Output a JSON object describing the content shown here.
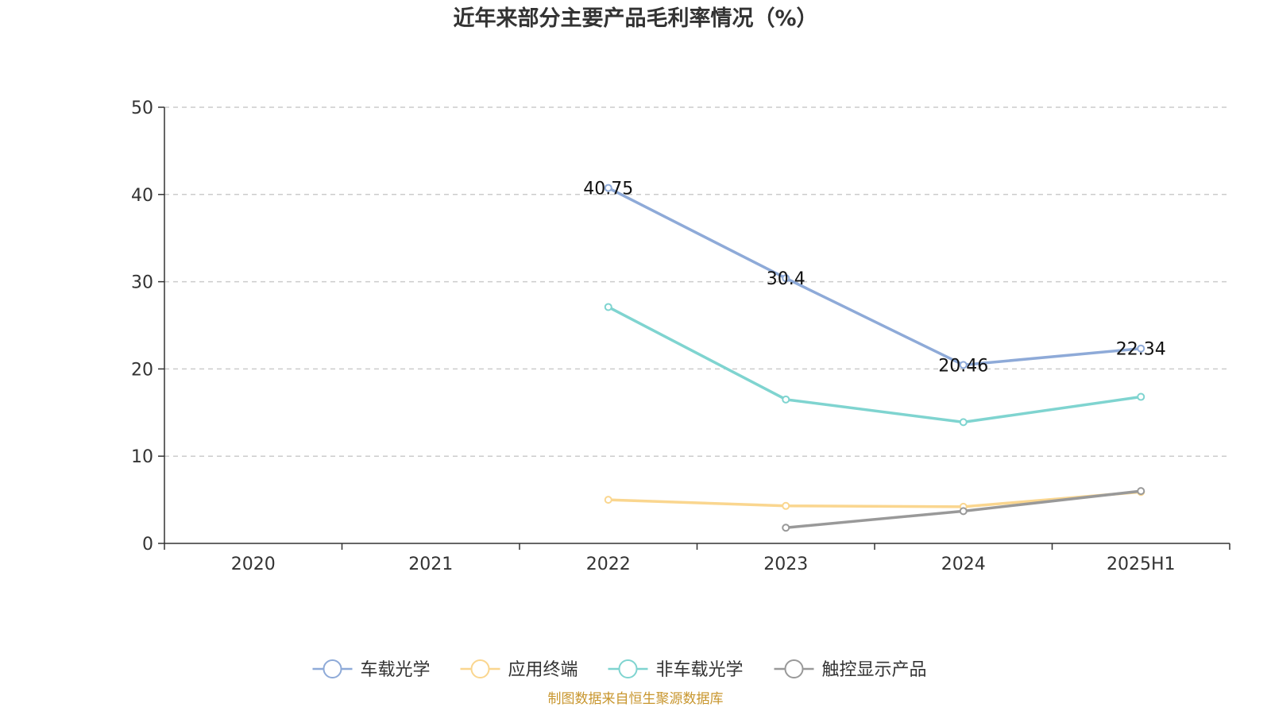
{
  "chart_data": {
    "type": "line",
    "title": "近年来部分主要产品毛利率情况（%）",
    "xlabel": "",
    "ylabel": "",
    "categories": [
      "2020",
      "2021",
      "2022",
      "2023",
      "2024",
      "2025H1"
    ],
    "ylim": [
      0,
      50
    ],
    "yticks": [
      0,
      10,
      20,
      30,
      40,
      50
    ],
    "grid": true,
    "legend_position": "bottom",
    "series": [
      {
        "name": "车载光学",
        "color": "#8eaad8",
        "values": [
          null,
          null,
          40.75,
          30.4,
          20.46,
          22.34
        ],
        "labels": [
          "",
          "",
          "40.75",
          "30.4",
          "20.46",
          "22.34"
        ]
      },
      {
        "name": "应用终端",
        "color": "#fad68f",
        "values": [
          null,
          null,
          5.0,
          4.3,
          4.2,
          5.9
        ],
        "labels": []
      },
      {
        "name": "非车载光学",
        "color": "#7fd4d0",
        "values": [
          null,
          null,
          27.1,
          16.5,
          13.9,
          16.8
        ],
        "labels": []
      },
      {
        "name": "触控显示产品",
        "color": "#999999",
        "values": [
          null,
          null,
          null,
          1.8,
          3.7,
          6.0
        ],
        "labels": []
      }
    ]
  },
  "source_note": "制图数据来自恒生聚源数据库"
}
